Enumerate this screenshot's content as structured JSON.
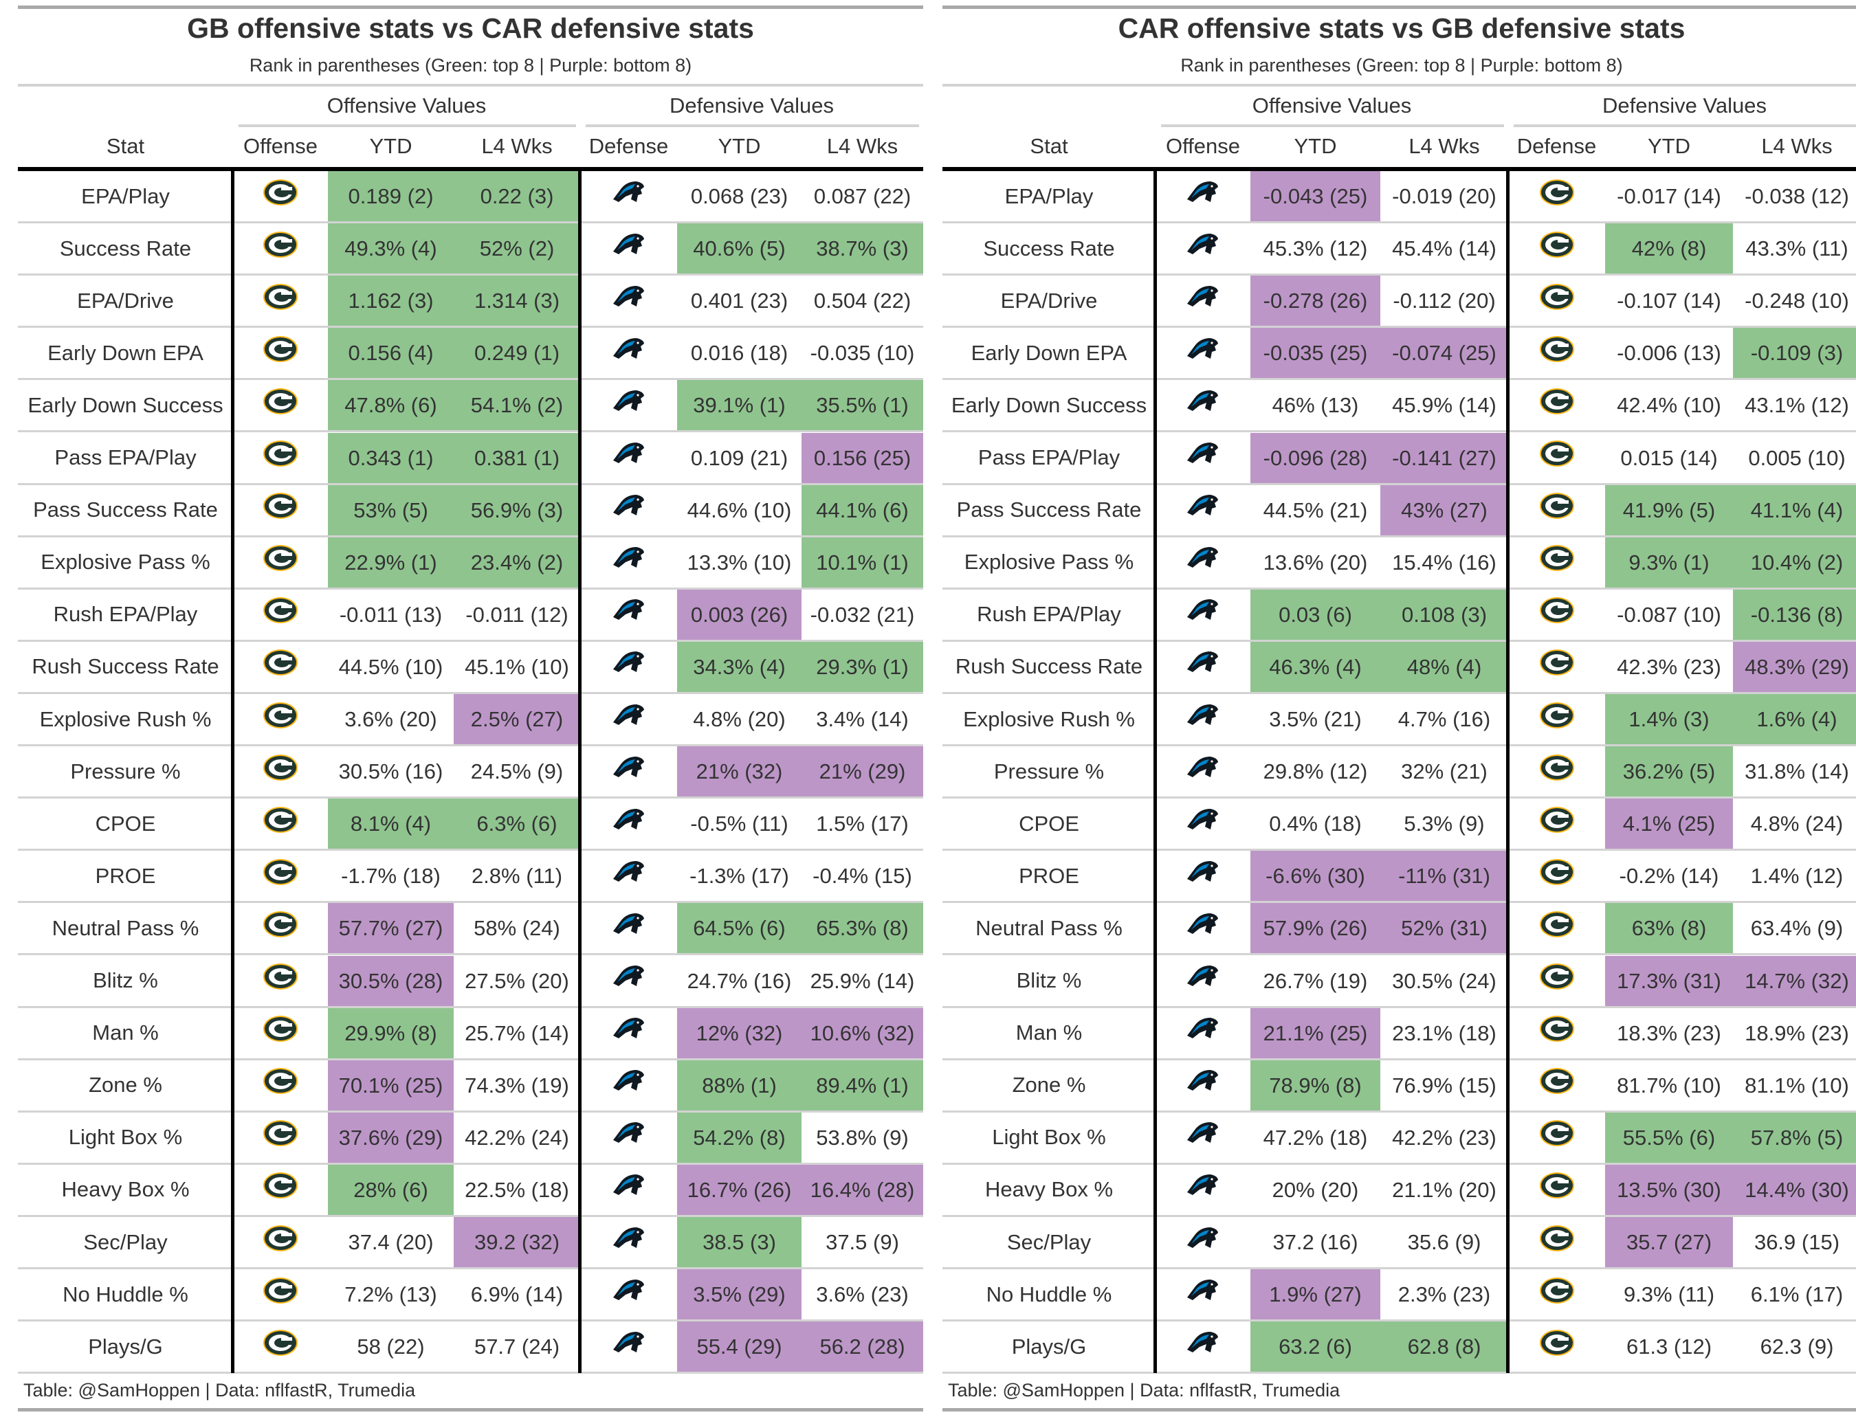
{
  "colors": {
    "green": "#8fc48f",
    "purple": "#bd96c8",
    "gb_green": "#203731",
    "gb_gold": "#ffb612",
    "car_blue": "#0085ca"
  },
  "panels": [
    {
      "title": "GB offensive stats vs CAR defensive stats",
      "subtitle": "Rank in parentheses (Green: top 8 | Purple: bottom 8)",
      "spanners": [
        "Offensive Values",
        "Defensive Values"
      ],
      "columns": [
        "Stat",
        "Offense",
        "YTD",
        "L4 Wks",
        "Defense",
        "YTD",
        "L4 Wks"
      ],
      "offense_logo": "packers-logo-icon",
      "defense_logo": "panthers-logo-icon",
      "footer": "Table: @SamHoppen | Data: nflfastR, Trumedia",
      "rows": [
        {
          "stat": "EPA/Play",
          "cells": [
            [
              "0.189 (2)",
              "g"
            ],
            [
              "0.22 (3)",
              "g"
            ],
            [
              "0.068 (23)",
              ""
            ],
            [
              "0.087 (22)",
              ""
            ]
          ]
        },
        {
          "stat": "Success Rate",
          "cells": [
            [
              "49.3% (4)",
              "g"
            ],
            [
              "52% (2)",
              "g"
            ],
            [
              "40.6% (5)",
              "g"
            ],
            [
              "38.7% (3)",
              "g"
            ]
          ]
        },
        {
          "stat": "EPA/Drive",
          "cells": [
            [
              "1.162 (3)",
              "g"
            ],
            [
              "1.314 (3)",
              "g"
            ],
            [
              "0.401 (23)",
              ""
            ],
            [
              "0.504 (22)",
              ""
            ]
          ]
        },
        {
          "stat": "Early Down EPA",
          "cells": [
            [
              "0.156 (4)",
              "g"
            ],
            [
              "0.249 (1)",
              "g"
            ],
            [
              "0.016 (18)",
              ""
            ],
            [
              "-0.035 (10)",
              ""
            ]
          ]
        },
        {
          "stat": "Early Down Success",
          "cells": [
            [
              "47.8% (6)",
              "g"
            ],
            [
              "54.1% (2)",
              "g"
            ],
            [
              "39.1% (1)",
              "g"
            ],
            [
              "35.5% (1)",
              "g"
            ]
          ]
        },
        {
          "stat": "Pass EPA/Play",
          "cells": [
            [
              "0.343 (1)",
              "g"
            ],
            [
              "0.381 (1)",
              "g"
            ],
            [
              "0.109 (21)",
              ""
            ],
            [
              "0.156 (25)",
              "p"
            ]
          ]
        },
        {
          "stat": "Pass Success Rate",
          "cells": [
            [
              "53% (5)",
              "g"
            ],
            [
              "56.9% (3)",
              "g"
            ],
            [
              "44.6% (10)",
              ""
            ],
            [
              "44.1% (6)",
              "g"
            ]
          ]
        },
        {
          "stat": "Explosive Pass %",
          "cells": [
            [
              "22.9% (1)",
              "g"
            ],
            [
              "23.4% (2)",
              "g"
            ],
            [
              "13.3% (10)",
              ""
            ],
            [
              "10.1% (1)",
              "g"
            ]
          ]
        },
        {
          "stat": "Rush EPA/Play",
          "cells": [
            [
              "-0.011 (13)",
              ""
            ],
            [
              "-0.011 (12)",
              ""
            ],
            [
              "0.003 (26)",
              "p"
            ],
            [
              "-0.032 (21)",
              ""
            ]
          ]
        },
        {
          "stat": "Rush Success Rate",
          "cells": [
            [
              "44.5% (10)",
              ""
            ],
            [
              "45.1% (10)",
              ""
            ],
            [
              "34.3% (4)",
              "g"
            ],
            [
              "29.3% (1)",
              "g"
            ]
          ]
        },
        {
          "stat": "Explosive Rush %",
          "cells": [
            [
              "3.6% (20)",
              ""
            ],
            [
              "2.5% (27)",
              "p"
            ],
            [
              "4.8% (20)",
              ""
            ],
            [
              "3.4% (14)",
              ""
            ]
          ]
        },
        {
          "stat": "Pressure %",
          "cells": [
            [
              "30.5% (16)",
              ""
            ],
            [
              "24.5% (9)",
              ""
            ],
            [
              "21% (32)",
              "p"
            ],
            [
              "21% (29)",
              "p"
            ]
          ]
        },
        {
          "stat": "CPOE",
          "cells": [
            [
              "8.1% (4)",
              "g"
            ],
            [
              "6.3% (6)",
              "g"
            ],
            [
              "-0.5% (11)",
              ""
            ],
            [
              "1.5% (17)",
              ""
            ]
          ]
        },
        {
          "stat": "PROE",
          "cells": [
            [
              "-1.7% (18)",
              ""
            ],
            [
              "2.8% (11)",
              ""
            ],
            [
              "-1.3% (17)",
              ""
            ],
            [
              "-0.4% (15)",
              ""
            ]
          ]
        },
        {
          "stat": "Neutral Pass %",
          "cells": [
            [
              "57.7% (27)",
              "p"
            ],
            [
              "58% (24)",
              ""
            ],
            [
              "64.5% (6)",
              "g"
            ],
            [
              "65.3% (8)",
              "g"
            ]
          ]
        },
        {
          "stat": "Blitz %",
          "cells": [
            [
              "30.5% (28)",
              "p"
            ],
            [
              "27.5% (20)",
              ""
            ],
            [
              "24.7% (16)",
              ""
            ],
            [
              "25.9% (14)",
              ""
            ]
          ]
        },
        {
          "stat": "Man %",
          "cells": [
            [
              "29.9% (8)",
              "g"
            ],
            [
              "25.7% (14)",
              ""
            ],
            [
              "12% (32)",
              "p"
            ],
            [
              "10.6% (32)",
              "p"
            ]
          ]
        },
        {
          "stat": "Zone %",
          "cells": [
            [
              "70.1% (25)",
              "p"
            ],
            [
              "74.3% (19)",
              ""
            ],
            [
              "88% (1)",
              "g"
            ],
            [
              "89.4% (1)",
              "g"
            ]
          ]
        },
        {
          "stat": "Light Box %",
          "cells": [
            [
              "37.6% (29)",
              "p"
            ],
            [
              "42.2% (24)",
              ""
            ],
            [
              "54.2% (8)",
              "g"
            ],
            [
              "53.8% (9)",
              ""
            ]
          ]
        },
        {
          "stat": "Heavy Box %",
          "cells": [
            [
              "28% (6)",
              "g"
            ],
            [
              "22.5% (18)",
              ""
            ],
            [
              "16.7% (26)",
              "p"
            ],
            [
              "16.4% (28)",
              "p"
            ]
          ]
        },
        {
          "stat": "Sec/Play",
          "cells": [
            [
              "37.4 (20)",
              ""
            ],
            [
              "39.2 (32)",
              "p"
            ],
            [
              "38.5 (3)",
              "g"
            ],
            [
              "37.5 (9)",
              ""
            ]
          ]
        },
        {
          "stat": "No Huddle %",
          "cells": [
            [
              "7.2% (13)",
              ""
            ],
            [
              "6.9% (14)",
              ""
            ],
            [
              "3.5% (29)",
              "p"
            ],
            [
              "3.6% (23)",
              ""
            ]
          ]
        },
        {
          "stat": "Plays/G",
          "cells": [
            [
              "58 (22)",
              ""
            ],
            [
              "57.7 (24)",
              ""
            ],
            [
              "55.4 (29)",
              "p"
            ],
            [
              "56.2 (28)",
              "p"
            ]
          ]
        }
      ]
    },
    {
      "title": "CAR offensive stats vs GB defensive stats",
      "subtitle": "Rank in parentheses (Green: top 8 | Purple: bottom 8)",
      "spanners": [
        "Offensive Values",
        "Defensive Values"
      ],
      "columns": [
        "Stat",
        "Offense",
        "YTD",
        "L4 Wks",
        "Defense",
        "YTD",
        "L4 Wks"
      ],
      "offense_logo": "panthers-logo-icon",
      "defense_logo": "packers-logo-icon",
      "footer": "Table: @SamHoppen | Data: nflfastR, Trumedia",
      "rows": [
        {
          "stat": "EPA/Play",
          "cells": [
            [
              "-0.043 (25)",
              "p"
            ],
            [
              "-0.019 (20)",
              ""
            ],
            [
              "-0.017 (14)",
              ""
            ],
            [
              "-0.038 (12)",
              ""
            ]
          ]
        },
        {
          "stat": "Success Rate",
          "cells": [
            [
              "45.3% (12)",
              ""
            ],
            [
              "45.4% (14)",
              ""
            ],
            [
              "42% (8)",
              "g"
            ],
            [
              "43.3% (11)",
              ""
            ]
          ]
        },
        {
          "stat": "EPA/Drive",
          "cells": [
            [
              "-0.278 (26)",
              "p"
            ],
            [
              "-0.112 (20)",
              ""
            ],
            [
              "-0.107 (14)",
              ""
            ],
            [
              "-0.248 (10)",
              ""
            ]
          ]
        },
        {
          "stat": "Early Down EPA",
          "cells": [
            [
              "-0.035 (25)",
              "p"
            ],
            [
              "-0.074 (25)",
              "p"
            ],
            [
              "-0.006 (13)",
              ""
            ],
            [
              "-0.109 (3)",
              "g"
            ]
          ]
        },
        {
          "stat": "Early Down Success",
          "cells": [
            [
              "46% (13)",
              ""
            ],
            [
              "45.9% (14)",
              ""
            ],
            [
              "42.4% (10)",
              ""
            ],
            [
              "43.1% (12)",
              ""
            ]
          ]
        },
        {
          "stat": "Pass EPA/Play",
          "cells": [
            [
              "-0.096 (28)",
              "p"
            ],
            [
              "-0.141 (27)",
              "p"
            ],
            [
              "0.015 (14)",
              ""
            ],
            [
              "0.005 (10)",
              ""
            ]
          ]
        },
        {
          "stat": "Pass Success Rate",
          "cells": [
            [
              "44.5% (21)",
              ""
            ],
            [
              "43% (27)",
              "p"
            ],
            [
              "41.9% (5)",
              "g"
            ],
            [
              "41.1% (4)",
              "g"
            ]
          ]
        },
        {
          "stat": "Explosive Pass %",
          "cells": [
            [
              "13.6% (20)",
              ""
            ],
            [
              "15.4% (16)",
              ""
            ],
            [
              "9.3% (1)",
              "g"
            ],
            [
              "10.4% (2)",
              "g"
            ]
          ]
        },
        {
          "stat": "Rush EPA/Play",
          "cells": [
            [
              "0.03 (6)",
              "g"
            ],
            [
              "0.108 (3)",
              "g"
            ],
            [
              "-0.087 (10)",
              ""
            ],
            [
              "-0.136 (8)",
              "g"
            ]
          ]
        },
        {
          "stat": "Rush Success Rate",
          "cells": [
            [
              "46.3% (4)",
              "g"
            ],
            [
              "48% (4)",
              "g"
            ],
            [
              "42.3% (23)",
              ""
            ],
            [
              "48.3% (29)",
              "p"
            ]
          ]
        },
        {
          "stat": "Explosive Rush %",
          "cells": [
            [
              "3.5% (21)",
              ""
            ],
            [
              "4.7% (16)",
              ""
            ],
            [
              "1.4% (3)",
              "g"
            ],
            [
              "1.6% (4)",
              "g"
            ]
          ]
        },
        {
          "stat": "Pressure %",
          "cells": [
            [
              "29.8% (12)",
              ""
            ],
            [
              "32% (21)",
              ""
            ],
            [
              "36.2% (5)",
              "g"
            ],
            [
              "31.8% (14)",
              ""
            ]
          ]
        },
        {
          "stat": "CPOE",
          "cells": [
            [
              "0.4% (18)",
              ""
            ],
            [
              "5.3% (9)",
              ""
            ],
            [
              "4.1% (25)",
              "p"
            ],
            [
              "4.8% (24)",
              ""
            ]
          ]
        },
        {
          "stat": "PROE",
          "cells": [
            [
              "-6.6% (30)",
              "p"
            ],
            [
              "-11% (31)",
              "p"
            ],
            [
              "-0.2% (14)",
              ""
            ],
            [
              "1.4% (12)",
              ""
            ]
          ]
        },
        {
          "stat": "Neutral Pass %",
          "cells": [
            [
              "57.9% (26)",
              "p"
            ],
            [
              "52% (31)",
              "p"
            ],
            [
              "63% (8)",
              "g"
            ],
            [
              "63.4% (9)",
              ""
            ]
          ]
        },
        {
          "stat": "Blitz %",
          "cells": [
            [
              "26.7% (19)",
              ""
            ],
            [
              "30.5% (24)",
              ""
            ],
            [
              "17.3% (31)",
              "p"
            ],
            [
              "14.7% (32)",
              "p"
            ]
          ]
        },
        {
          "stat": "Man %",
          "cells": [
            [
              "21.1% (25)",
              "p"
            ],
            [
              "23.1% (18)",
              ""
            ],
            [
              "18.3% (23)",
              ""
            ],
            [
              "18.9% (23)",
              ""
            ]
          ]
        },
        {
          "stat": "Zone %",
          "cells": [
            [
              "78.9% (8)",
              "g"
            ],
            [
              "76.9% (15)",
              ""
            ],
            [
              "81.7% (10)",
              ""
            ],
            [
              "81.1% (10)",
              ""
            ]
          ]
        },
        {
          "stat": "Light Box %",
          "cells": [
            [
              "47.2% (18)",
              ""
            ],
            [
              "42.2% (23)",
              ""
            ],
            [
              "55.5% (6)",
              "g"
            ],
            [
              "57.8% (5)",
              "g"
            ]
          ]
        },
        {
          "stat": "Heavy Box %",
          "cells": [
            [
              "20% (20)",
              ""
            ],
            [
              "21.1% (20)",
              ""
            ],
            [
              "13.5% (30)",
              "p"
            ],
            [
              "14.4% (30)",
              "p"
            ]
          ]
        },
        {
          "stat": "Sec/Play",
          "cells": [
            [
              "37.2 (16)",
              ""
            ],
            [
              "35.6 (9)",
              ""
            ],
            [
              "35.7 (27)",
              "p"
            ],
            [
              "36.9 (15)",
              ""
            ]
          ]
        },
        {
          "stat": "No Huddle %",
          "cells": [
            [
              "1.9% (27)",
              "p"
            ],
            [
              "2.3% (23)",
              ""
            ],
            [
              "9.3% (11)",
              ""
            ],
            [
              "6.1% (17)",
              ""
            ]
          ]
        },
        {
          "stat": "Plays/G",
          "cells": [
            [
              "63.2 (6)",
              "g"
            ],
            [
              "62.8 (8)",
              "g"
            ],
            [
              "61.3 (12)",
              ""
            ],
            [
              "62.3 (9)",
              ""
            ]
          ]
        }
      ]
    }
  ]
}
